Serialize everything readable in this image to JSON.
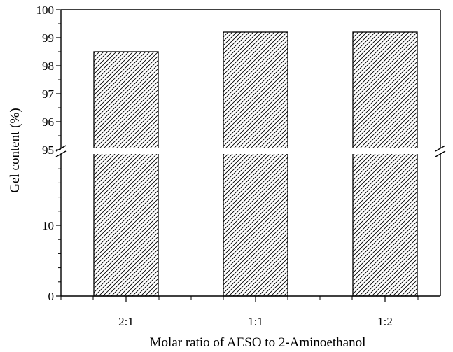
{
  "chart_data": {
    "type": "bar",
    "title": "",
    "xlabel": "Molar ratio of AESO to  2-Aminoethanol",
    "ylabel": "Gel content (%)",
    "categories": [
      "2:1",
      "1:1",
      "1:2"
    ],
    "values": [
      98.5,
      99.2,
      99.2
    ],
    "y_axis_break": {
      "lower_range": [
        0,
        20
      ],
      "upper_range": [
        95,
        100
      ]
    },
    "lower_ticks": [
      "0",
      "10"
    ],
    "upper_ticks": [
      "95",
      "96",
      "97",
      "98",
      "99",
      "100"
    ],
    "bar_fill": "diagonal-hatch",
    "grid": false,
    "legend": "none"
  },
  "colors": {
    "axis": "#000000",
    "hatch": "#000000",
    "background": "#ffffff"
  }
}
